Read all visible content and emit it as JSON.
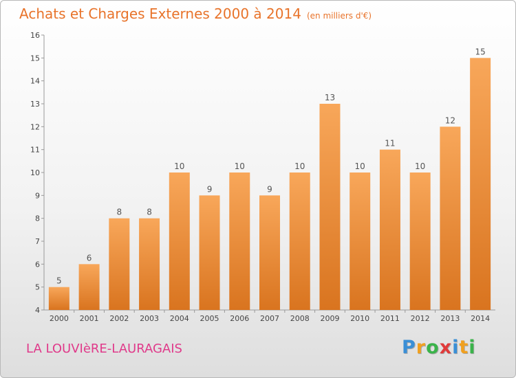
{
  "title": "Achats et Charges Externes 2000 à 2014",
  "subtitle": "(en milliers d'€)",
  "commune": "LA LOUVIèRE-LAURAGAIS",
  "logo": {
    "letters": [
      "P",
      "r",
      "o",
      "x",
      "i",
      "t",
      "i"
    ],
    "colors": [
      "#3a8fd6",
      "#f0a020",
      "#3ab34a",
      "#e03a3a",
      "#3a8fd6",
      "#f0a020",
      "#3ab34a"
    ]
  },
  "colors": {
    "bar_light": "#f8a75a",
    "bar_dark": "#d9741f",
    "title": "#e8732a",
    "commune": "#e03a8a"
  },
  "chart_data": {
    "type": "bar",
    "categories": [
      "2000",
      "2001",
      "2002",
      "2003",
      "2004",
      "2005",
      "2006",
      "2007",
      "2008",
      "2009",
      "2010",
      "2011",
      "2012",
      "2013",
      "2014"
    ],
    "values": [
      5,
      6,
      8,
      8,
      10,
      9,
      10,
      9,
      10,
      13,
      10,
      11,
      10,
      12,
      15
    ],
    "data_labels": [
      "5",
      "6",
      "8",
      "8",
      "10",
      "9",
      "10",
      "9",
      "10",
      "13",
      "10",
      "11",
      "10",
      "12",
      "15"
    ],
    "yticks": [
      "4",
      "5",
      "6",
      "7",
      "8",
      "9",
      "10",
      "11",
      "12",
      "13",
      "14",
      "15",
      "16"
    ],
    "ylim": [
      4,
      16
    ],
    "grid": false,
    "xlabel": "",
    "ylabel": ""
  }
}
